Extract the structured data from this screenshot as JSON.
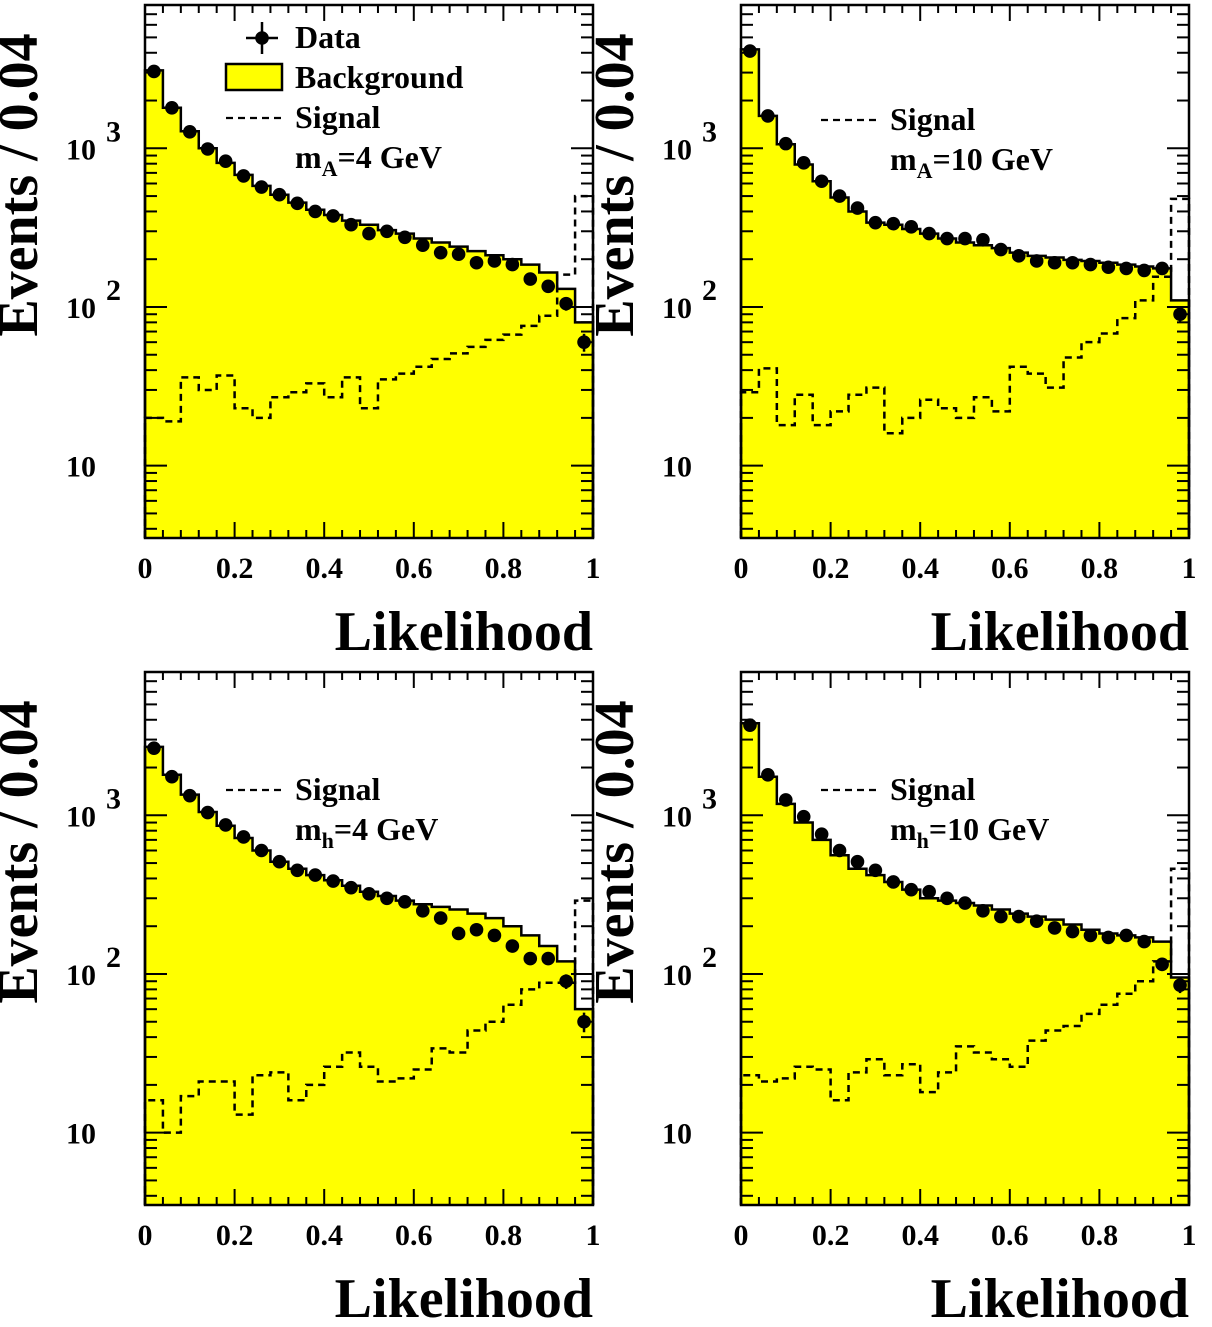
{
  "chart_data": [
    {
      "type": "histogram",
      "xlabel": "Likelihood",
      "ylabel": "Events / 0.04",
      "xlim": [
        0,
        1
      ],
      "ylim": [
        3.5,
        8000
      ],
      "yscale": "log",
      "xticks": [
        "0",
        "0.2",
        "0.4",
        "0.6",
        "0.8",
        "1"
      ],
      "yticks": [
        {
          "value": 10,
          "base": "10",
          "exp": ""
        },
        {
          "value": 100,
          "base": "10",
          "exp": "2"
        },
        {
          "value": 1000,
          "base": "10",
          "exp": "3"
        }
      ],
      "legend": {
        "entries": [
          {
            "kind": "data",
            "label": "Data"
          },
          {
            "kind": "background",
            "label": "Background"
          },
          {
            "kind": "signal",
            "label": "Signal"
          }
        ],
        "mass": {
          "sym": "m",
          "sub": "A",
          "value": "=4 GeV"
        }
      },
      "x_edges": [
        0,
        0.04,
        0.08,
        0.12,
        0.16,
        0.2,
        0.24,
        0.28,
        0.32,
        0.36,
        0.4,
        0.44,
        0.48,
        0.52,
        0.56,
        0.6,
        0.64,
        0.68,
        0.72,
        0.76,
        0.8,
        0.84,
        0.88,
        0.92,
        0.96,
        1.0
      ],
      "series": [
        {
          "name": "Background",
          "values": [
            3100,
            1800,
            1280,
            1000,
            810,
            680,
            580,
            510,
            455,
            410,
            380,
            350,
            330,
            305,
            290,
            270,
            255,
            240,
            225,
            212,
            200,
            185,
            165,
            130,
            80
          ]
        },
        {
          "name": "Signal",
          "values": [
            20,
            19,
            36,
            30,
            37,
            23,
            20,
            27,
            29,
            33,
            27,
            36,
            23,
            35,
            38,
            42,
            47,
            51,
            56,
            62,
            67,
            76,
            88,
            160,
            500
          ]
        },
        {
          "name": "Data",
          "values": [
            3050,
            1800,
            1270,
            990,
            830,
            670,
            570,
            510,
            450,
            400,
            375,
            330,
            290,
            300,
            275,
            245,
            220,
            215,
            190,
            195,
            185,
            150,
            135,
            105,
            60
          ]
        }
      ]
    },
    {
      "type": "histogram",
      "xlabel": "Likelihood",
      "ylabel": "Events / 0.04",
      "xlim": [
        0,
        1
      ],
      "ylim": [
        3.5,
        8000
      ],
      "yscale": "log",
      "xticks": [
        "0",
        "0.2",
        "0.4",
        "0.6",
        "0.8",
        "1"
      ],
      "yticks": [
        {
          "value": 10,
          "base": "10",
          "exp": ""
        },
        {
          "value": 100,
          "base": "10",
          "exp": "2"
        },
        {
          "value": 1000,
          "base": "10",
          "exp": "3"
        }
      ],
      "legend": {
        "entries": [
          {
            "kind": "signal",
            "label": "Signal"
          }
        ],
        "mass": {
          "sym": "m",
          "sub": "A",
          "value": "=10 GeV"
        }
      },
      "x_edges": [
        0,
        0.04,
        0.08,
        0.12,
        0.16,
        0.2,
        0.24,
        0.28,
        0.32,
        0.36,
        0.4,
        0.44,
        0.48,
        0.52,
        0.56,
        0.6,
        0.64,
        0.68,
        0.72,
        0.76,
        0.8,
        0.84,
        0.88,
        0.92,
        0.96,
        1.0
      ],
      "series": [
        {
          "name": "Background",
          "values": [
            4200,
            1600,
            1060,
            790,
            620,
            490,
            400,
            340,
            330,
            310,
            290,
            270,
            255,
            245,
            235,
            220,
            210,
            205,
            198,
            195,
            190,
            185,
            180,
            175,
            110
          ]
        },
        {
          "name": "Signal",
          "values": [
            29,
            41,
            18,
            28,
            18,
            22,
            28,
            31,
            16,
            20,
            26,
            23,
            20,
            27,
            22,
            42,
            38,
            31,
            48,
            60,
            68,
            85,
            110,
            155,
            480
          ]
        },
        {
          "name": "Data",
          "values": [
            4100,
            1600,
            1070,
            810,
            620,
            500,
            420,
            340,
            335,
            320,
            290,
            270,
            270,
            265,
            230,
            210,
            195,
            190,
            190,
            185,
            178,
            175,
            170,
            175,
            90
          ]
        }
      ]
    },
    {
      "type": "histogram",
      "xlabel": "Likelihood",
      "ylabel": "Events / 0.04",
      "xlim": [
        0,
        1
      ],
      "ylim": [
        3.5,
        8000
      ],
      "yscale": "log",
      "xticks": [
        "0",
        "0.2",
        "0.4",
        "0.6",
        "0.8",
        "1"
      ],
      "yticks": [
        {
          "value": 10,
          "base": "10",
          "exp": ""
        },
        {
          "value": 100,
          "base": "10",
          "exp": "2"
        },
        {
          "value": 1000,
          "base": "10",
          "exp": "3"
        }
      ],
      "legend": {
        "entries": [
          {
            "kind": "signal",
            "label": "Signal"
          }
        ],
        "mass": {
          "sym": "m",
          "sub": "h",
          "value": "=4 GeV"
        }
      },
      "x_edges": [
        0,
        0.04,
        0.08,
        0.12,
        0.16,
        0.2,
        0.24,
        0.28,
        0.32,
        0.36,
        0.4,
        0.44,
        0.48,
        0.52,
        0.56,
        0.6,
        0.64,
        0.68,
        0.72,
        0.76,
        0.8,
        0.84,
        0.88,
        0.92,
        0.96,
        1.0
      ],
      "series": [
        {
          "name": "Background",
          "values": [
            2700,
            1800,
            1350,
            1050,
            860,
            720,
            600,
            510,
            460,
            420,
            390,
            360,
            330,
            310,
            290,
            275,
            265,
            255,
            240,
            225,
            200,
            175,
            150,
            120,
            60
          ]
        },
        {
          "name": "Signal",
          "values": [
            16,
            10,
            17,
            21,
            21,
            13,
            23,
            24,
            16,
            20,
            26,
            32,
            26,
            21,
            22,
            25,
            34,
            32,
            44,
            50,
            64,
            80,
            88,
            88,
            290
          ]
        },
        {
          "name": "Data",
          "values": [
            2650,
            1750,
            1330,
            1040,
            870,
            730,
            600,
            510,
            450,
            420,
            385,
            350,
            320,
            300,
            285,
            250,
            225,
            180,
            190,
            175,
            150,
            125,
            125,
            90,
            50
          ]
        }
      ]
    },
    {
      "type": "histogram",
      "xlabel": "Likelihood",
      "ylabel": "Events / 0.04",
      "xlim": [
        0,
        1
      ],
      "ylim": [
        3.5,
        8000
      ],
      "yscale": "log",
      "xticks": [
        "0",
        "0.2",
        "0.4",
        "0.6",
        "0.8",
        "1"
      ],
      "yticks": [
        {
          "value": 10,
          "base": "10",
          "exp": ""
        },
        {
          "value": 100,
          "base": "10",
          "exp": "2"
        },
        {
          "value": 1000,
          "base": "10",
          "exp": "3"
        }
      ],
      "legend": {
        "entries": [
          {
            "kind": "signal",
            "label": "Signal"
          }
        ],
        "mass": {
          "sym": "m",
          "sub": "h",
          "value": "=10 GeV"
        }
      },
      "x_edges": [
        0,
        0.04,
        0.08,
        0.12,
        0.16,
        0.2,
        0.24,
        0.28,
        0.32,
        0.36,
        0.4,
        0.44,
        0.48,
        0.52,
        0.56,
        0.6,
        0.64,
        0.68,
        0.72,
        0.76,
        0.8,
        0.84,
        0.88,
        0.92,
        0.96,
        1.0
      ],
      "series": [
        {
          "name": "Background",
          "values": [
            3800,
            1750,
            1180,
            900,
            700,
            560,
            460,
            420,
            380,
            340,
            300,
            290,
            280,
            270,
            255,
            240,
            230,
            220,
            205,
            190,
            180,
            175,
            170,
            160,
            95
          ]
        },
        {
          "name": "Signal",
          "values": [
            23,
            21,
            22,
            26,
            25,
            16,
            24,
            29,
            23,
            27,
            18,
            24,
            35,
            32,
            29,
            26,
            38,
            44,
            47,
            56,
            64,
            75,
            90,
            120,
            460
          ]
        },
        {
          "name": "Data",
          "values": [
            3700,
            1800,
            1250,
            980,
            760,
            600,
            510,
            450,
            380,
            340,
            330,
            300,
            280,
            250,
            230,
            230,
            215,
            195,
            185,
            175,
            170,
            175,
            160,
            115,
            85
          ]
        }
      ]
    }
  ]
}
